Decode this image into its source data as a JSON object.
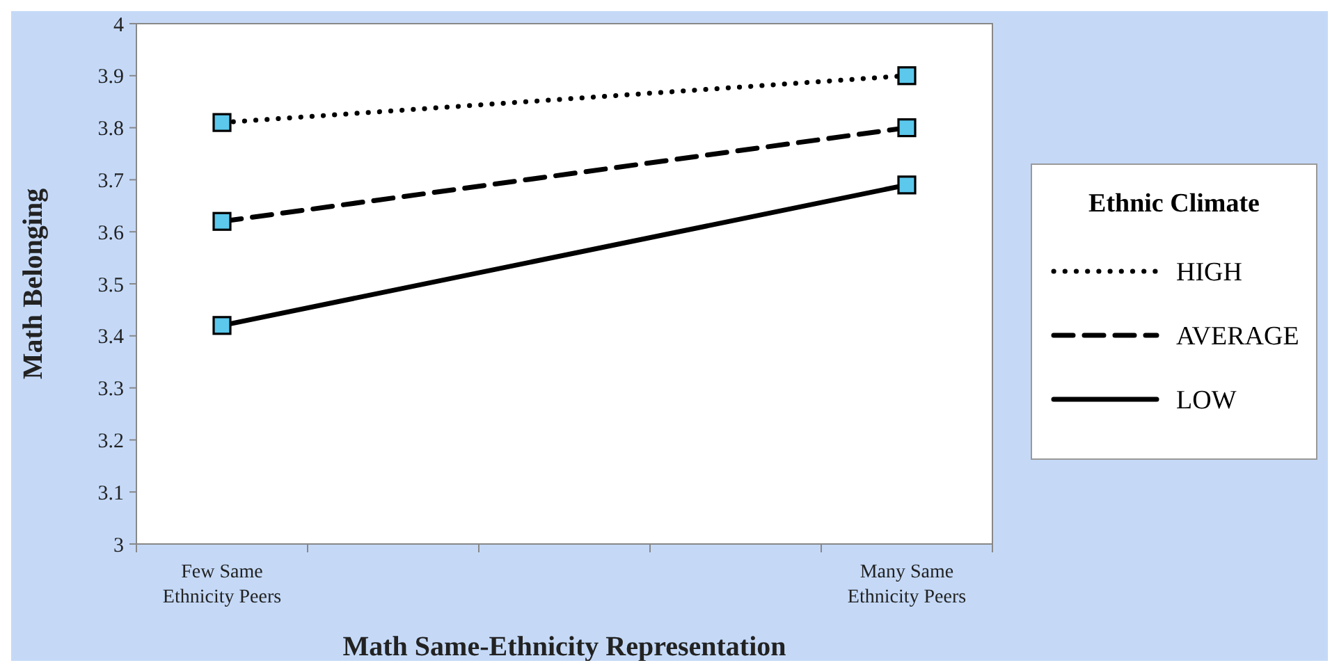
{
  "chart_data": {
    "type": "line",
    "xlabel": "Math Same-Ethnicity Representation",
    "ylabel": "Math Belonging",
    "legend_title": "Ethnic Climate",
    "categories": [
      "Few Same Ethnicity Peers",
      "Many Same Ethnicity Peers"
    ],
    "series": [
      {
        "name": "HIGH",
        "color": "#000000",
        "values": [
          3.81,
          3.9
        ],
        "line_style": "dotted"
      },
      {
        "name": "AVERAGE",
        "color": "#000000",
        "values": [
          3.62,
          3.8
        ],
        "line_style": "dashed"
      },
      {
        "name": "LOW",
        "color": "#000000",
        "values": [
          3.42,
          3.69
        ],
        "line_style": "solid"
      }
    ],
    "ylim": [
      3,
      4
    ],
    "yticks": [
      3,
      3.1,
      3.2,
      3.3,
      3.4,
      3.5,
      3.6,
      3.7,
      3.8,
      3.9,
      4
    ],
    "marker": "square",
    "legend": "right",
    "grid": false
  }
}
